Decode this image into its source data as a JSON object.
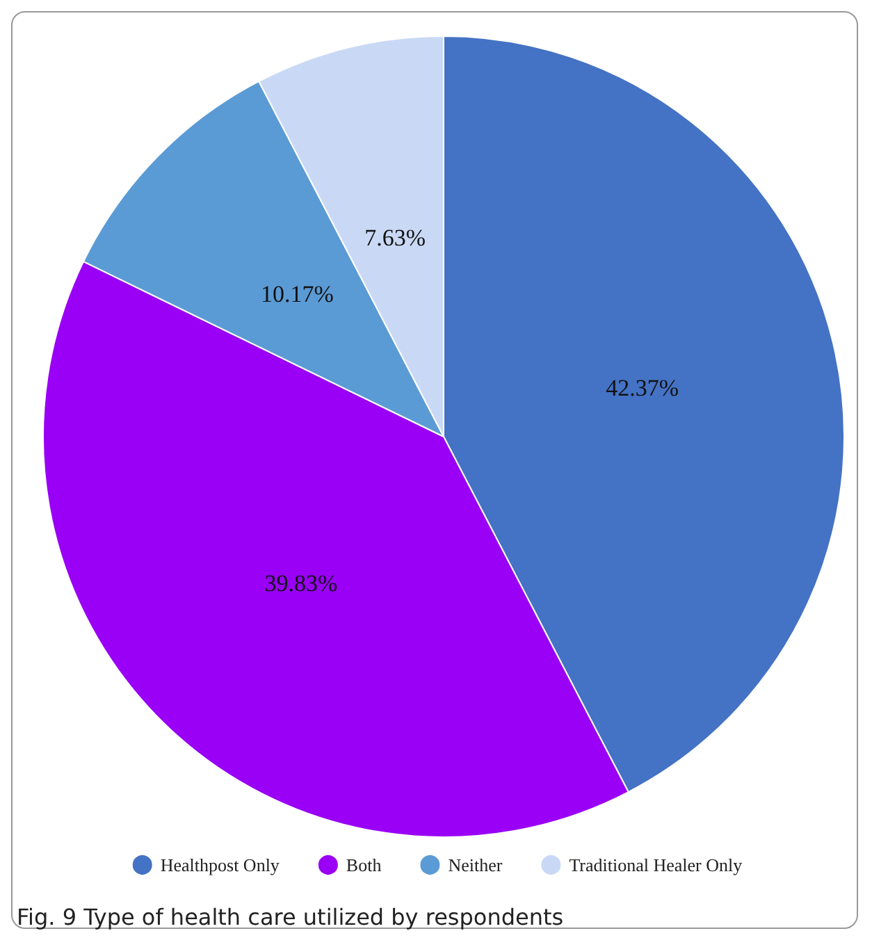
{
  "chart_data": {
    "type": "pie",
    "categories": [
      "Healthpost Only",
      "Both",
      "Neither",
      "Traditional Healer Only"
    ],
    "values": [
      42.37,
      39.83,
      10.17,
      7.63
    ],
    "value_labels": [
      "42.37%",
      "39.83%",
      "10.17%",
      "7.63%"
    ],
    "colors": [
      "#4472c4",
      "#9900f5",
      "#5b9bd5",
      "#c9d9f5"
    ],
    "legend": "bottom",
    "annotations": [
      "Fig. 9  Type of health care utilized by respondents"
    ]
  }
}
